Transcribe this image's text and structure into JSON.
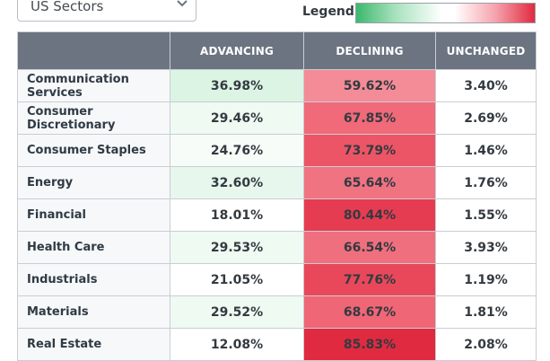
{
  "selector": {
    "value": "US Sectors",
    "icon": "chevron-down-icon"
  },
  "legend": {
    "label": "Legend:",
    "colors": [
      "#3cb86e",
      "#ffffff",
      "#e02a40"
    ]
  },
  "table": {
    "headers": {
      "sector": "",
      "advancing": "ADVANCING",
      "declining": "DECLINING",
      "unchanged": "UNCHANGED"
    },
    "rows": [
      {
        "sector": "Communication Services",
        "advancing": "36.98%",
        "declining": "59.62%",
        "unchanged": "3.40%",
        "adv_color": "#dcf4e4",
        "dec_color": "#f38c97"
      },
      {
        "sector": "Consumer Discretionary",
        "advancing": "29.46%",
        "declining": "67.85%",
        "unchanged": "2.69%",
        "adv_color": "#eefaf2",
        "dec_color": "#f06a79"
      },
      {
        "sector": "Consumer Staples",
        "advancing": "24.76%",
        "declining": "73.79%",
        "unchanged": "1.46%",
        "adv_color": "#f7fcf9",
        "dec_color": "#ec5566"
      },
      {
        "sector": "Energy",
        "advancing": "32.60%",
        "declining": "65.64%",
        "unchanged": "1.76%",
        "adv_color": "#e7f7ed",
        "dec_color": "#f07382"
      },
      {
        "sector": "Financial",
        "advancing": "18.01%",
        "declining": "80.44%",
        "unchanged": "1.55%",
        "adv_color": "#ffffff",
        "dec_color": "#e63c51"
      },
      {
        "sector": "Health Care",
        "advancing": "29.53%",
        "declining": "66.54%",
        "unchanged": "3.93%",
        "adv_color": "#eefaf2",
        "dec_color": "#f06f7e"
      },
      {
        "sector": "Industrials",
        "advancing": "21.05%",
        "declining": "77.76%",
        "unchanged": "1.19%",
        "adv_color": "#ffffff",
        "dec_color": "#e9485b"
      },
      {
        "sector": "Materials",
        "advancing": "29.52%",
        "declining": "68.67%",
        "unchanged": "1.81%",
        "adv_color": "#eefaf2",
        "dec_color": "#ef6676"
      },
      {
        "sector": "Real Estate",
        "advancing": "12.08%",
        "declining": "85.83%",
        "unchanged": "2.08%",
        "adv_color": "#ffffff",
        "dec_color": "#e02a40"
      }
    ]
  }
}
